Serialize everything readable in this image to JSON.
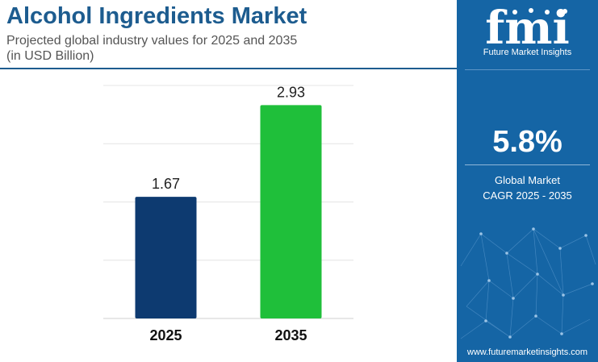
{
  "header": {
    "title": "Alcohol Ingredients Market",
    "subtitle_line1": "Projected global industry values for 2025 and 2035",
    "subtitle_line2": "(in USD Billion)"
  },
  "chart_data": {
    "type": "bar",
    "categories": [
      "2025",
      "2035"
    ],
    "values": [
      1.67,
      2.93
    ],
    "data_labels": [
      "1.67",
      "2.93"
    ],
    "bar_colors": [
      "#0d3a70",
      "#1fbf3a"
    ],
    "ylim": [
      0,
      3.2
    ],
    "grid": true,
    "xlabel": "",
    "ylabel": ""
  },
  "sidebar": {
    "logo_letters": "fmi",
    "logo_name": "Future Market Insights",
    "cagr_value": "5.8%",
    "cagr_label_line1": "Global Market",
    "cagr_label_line2": "CAGR 2025 - 2035",
    "website": "www.futuremarketinsights.com"
  },
  "colors": {
    "title": "#1d5c8f",
    "sidebar_bg": "#1565a5",
    "bar_2025": "#0d3a70",
    "bar_2035": "#1fbf3a"
  }
}
